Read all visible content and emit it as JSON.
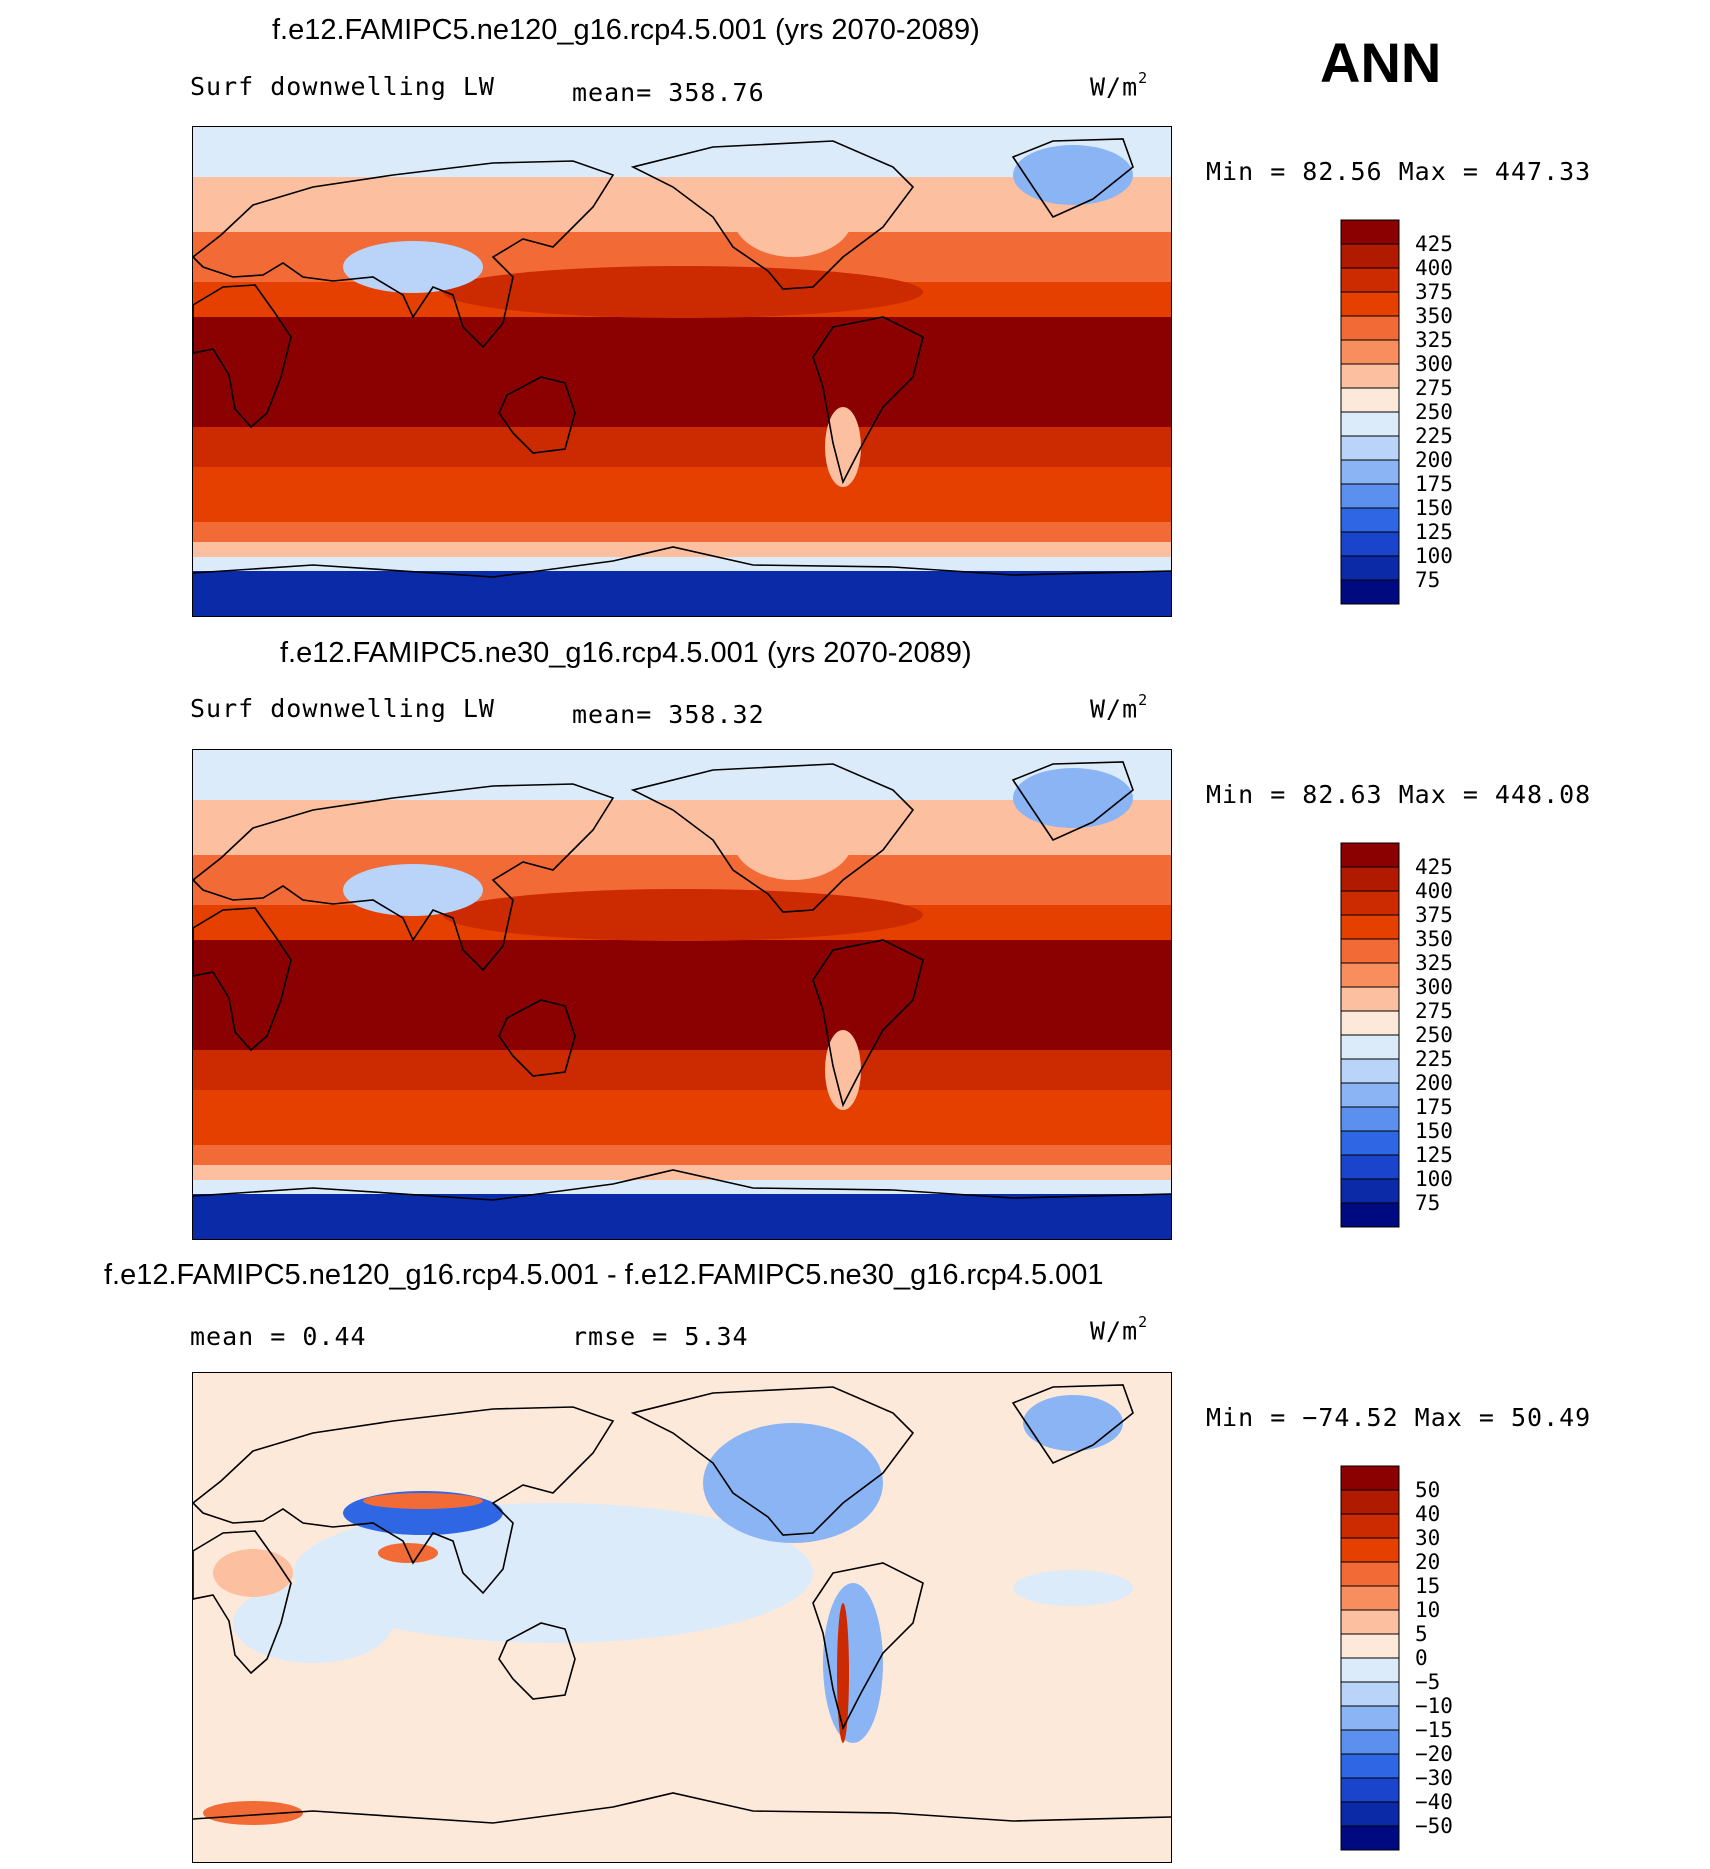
{
  "season": "ANN",
  "panels": [
    {
      "id": "ne120",
      "title": "f.e12.FAMIPC5.ne120_g16.rcp4.5.001 (yrs 2070-2089)",
      "left_label": "Surf downwelling LW",
      "center_label": "mean= 358.76",
      "units_base": "W/m",
      "units_exp": "2",
      "minmax": "Min =  82.56 Max = 447.33",
      "colorbar": {
        "labels": [
          "425",
          "400",
          "375",
          "350",
          "325",
          "300",
          "275",
          "250",
          "225",
          "200",
          "175",
          "150",
          "125",
          "100",
          "75"
        ],
        "colors": [
          "#8b0000",
          "#b01a00",
          "#cc2a00",
          "#e64000",
          "#f26a35",
          "#f88e5e",
          "#fcbfa0",
          "#fde9da",
          "#dcebfa",
          "#b9d4f8",
          "#8ab4f4",
          "#5b90ef",
          "#2f66e4",
          "#1a44cc",
          "#0a2aa8",
          "#000a80"
        ]
      },
      "map": {
        "type": "absolute",
        "tropics": "#8b0000",
        "ocean_mid": "#e64000",
        "high": "#fcbfa0",
        "polar": "#dcebfa",
        "antarctic": "#0a2aa8",
        "greenland": "#8ab4f4",
        "tibet": "#b9d4f8"
      }
    },
    {
      "id": "ne30",
      "title": "f.e12.FAMIPC5.ne30_g16.rcp4.5.001 (yrs 2070-2089)",
      "left_label": "Surf downwelling LW",
      "center_label": "mean= 358.32",
      "units_base": "W/m",
      "units_exp": "2",
      "minmax": "Min =  82.63 Max = 448.08",
      "colorbar": {
        "labels": [
          "425",
          "400",
          "375",
          "350",
          "325",
          "300",
          "275",
          "250",
          "225",
          "200",
          "175",
          "150",
          "125",
          "100",
          "75"
        ],
        "colors": [
          "#8b0000",
          "#b01a00",
          "#cc2a00",
          "#e64000",
          "#f26a35",
          "#f88e5e",
          "#fcbfa0",
          "#fde9da",
          "#dcebfa",
          "#b9d4f8",
          "#8ab4f4",
          "#5b90ef",
          "#2f66e4",
          "#1a44cc",
          "#0a2aa8",
          "#000a80"
        ]
      },
      "map": {
        "type": "absolute",
        "tropics": "#8b0000",
        "ocean_mid": "#e64000",
        "high": "#fcbfa0",
        "polar": "#dcebfa",
        "antarctic": "#0a2aa8",
        "greenland": "#8ab4f4",
        "tibet": "#b9d4f8"
      }
    },
    {
      "id": "diff",
      "title": "f.e12.FAMIPC5.ne120_g16.rcp4.5.001 - f.e12.FAMIPC5.ne30_g16.rcp4.5.001",
      "left_label": "mean =    0.44",
      "center_label": "rmse =    5.34",
      "units_base": "W/m",
      "units_exp": "2",
      "minmax": "Min = −74.52 Max =   50.49",
      "colorbar": {
        "labels": [
          "50",
          "40",
          "30",
          "20",
          "15",
          "10",
          "5",
          "0",
          "−5",
          "−10",
          "−15",
          "−20",
          "−30",
          "−40",
          "−50"
        ],
        "colors": [
          "#8b0000",
          "#b01a00",
          "#cc2a00",
          "#e64000",
          "#f26a35",
          "#f88e5e",
          "#fcbfa0",
          "#fde9da",
          "#dcebfa",
          "#b9d4f8",
          "#8ab4f4",
          "#5b90ef",
          "#2f66e4",
          "#1a44cc",
          "#0a2aa8",
          "#000a80"
        ]
      },
      "map": {
        "type": "difference",
        "background": "#fde9da",
        "neg_light": "#dcebfa",
        "neg_mid": "#8ab4f4",
        "neg_strong": "#2f66e4",
        "pos_light": "#fcbfa0",
        "pos_mid": "#f26a35",
        "pos_strong": "#cc2a00"
      }
    }
  ]
}
